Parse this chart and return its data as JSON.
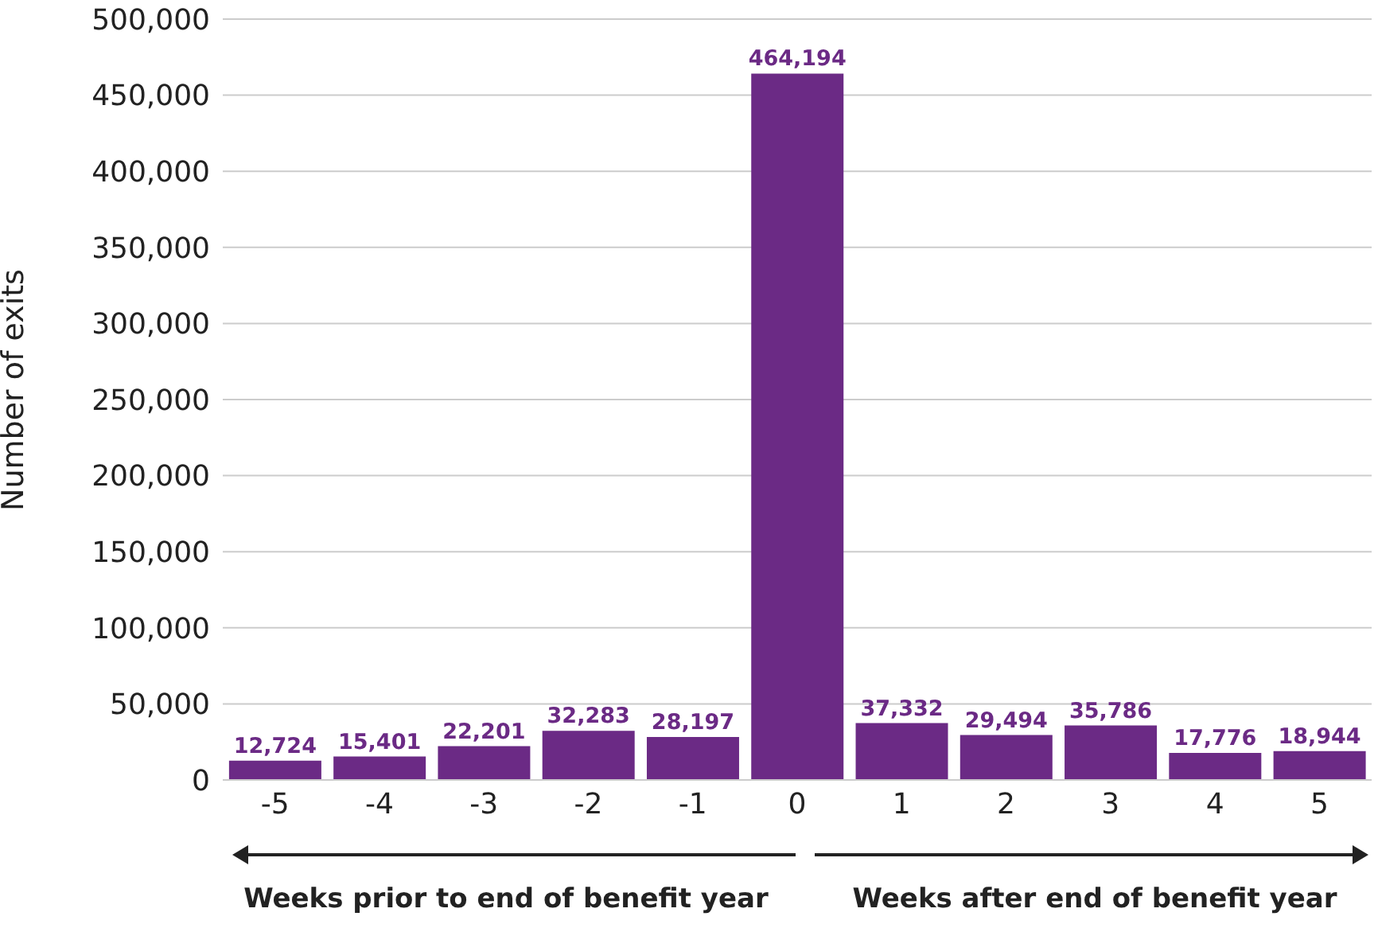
{
  "chart_data": {
    "type": "bar",
    "ylabel": "Number of exits",
    "categories": [
      "-5",
      "-4",
      "-3",
      "-2",
      "-1",
      "0",
      "1",
      "2",
      "3",
      "4",
      "5"
    ],
    "values": [
      12724,
      15401,
      22201,
      32283,
      28197,
      464194,
      37332,
      29494,
      35786,
      17776,
      18944
    ],
    "value_labels": [
      "12,724",
      "15,401",
      "22,201",
      "32,283",
      "28,197",
      "464,194",
      "37,332",
      "29,494",
      "35,786",
      "17,776",
      "18,944"
    ],
    "color": "#6b2a85",
    "ylim": [
      0,
      500000
    ],
    "yticks": [
      0,
      {
        "value": 50000,
        "label": "50,000"
      },
      {
        "value": 100000,
        "label": "100,000"
      },
      {
        "value": 150000,
        "label": "150,000"
      },
      {
        "value": 200000,
        "label": "200,000"
      },
      {
        "value": 250000,
        "label": "250,000"
      },
      {
        "value": 300000,
        "label": "300,000"
      },
      {
        "value": 350000,
        "label": "350,000"
      },
      {
        "value": 400000,
        "label": "400,000"
      },
      {
        "value": 450000,
        "label": "450,000"
      },
      {
        "value": 500000,
        "label": "500,000"
      }
    ],
    "grid": "y",
    "annotations": [
      "Weeks prior to end of benefit year",
      "Weeks after end of benefit year"
    ]
  }
}
